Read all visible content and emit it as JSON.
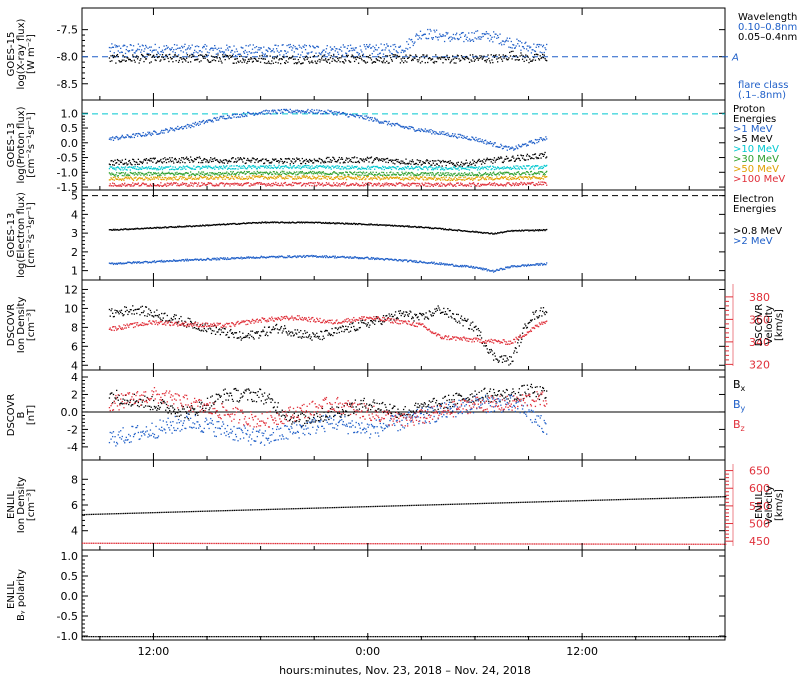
{
  "x_ticks": [
    "12:00",
    "0:00",
    "12:00"
  ],
  "x_axis_label": "hours:minutes, Nov. 23, 2018 – Nov. 24, 2018",
  "chart_data": [
    {
      "type": "scatter",
      "ylabel_lines": [
        "GOES-15",
        "log(X-ray flux)",
        "[W m⁻²]"
      ],
      "ylim": [
        -8.8,
        -7.1
      ],
      "yticks": [
        -8.5,
        -8.0,
        -7.5
      ],
      "hlines": [
        {
          "y": -8.0,
          "color": "#1f5fc8",
          "dash": true,
          "label": "A"
        }
      ],
      "legend_title": "Wavelength",
      "series": [
        {
          "name": "0.10–0.8nm",
          "color": "#1f5fc8",
          "x": [
            -14.5,
            -12,
            -8,
            -4,
            -1,
            1,
            2,
            3,
            4,
            5,
            6,
            7,
            8.5,
            9,
            10
          ],
          "y": [
            -7.85,
            -7.85,
            -7.87,
            -7.86,
            -7.87,
            -7.85,
            -7.82,
            -7.55,
            -7.6,
            -7.65,
            -7.6,
            -7.62,
            -7.78,
            -7.82,
            -7.84
          ],
          "scatter": 0.1
        },
        {
          "name": "0.05–0.4nm",
          "color": "#000000",
          "x": [
            -14.5,
            -10,
            -5,
            0,
            4,
            7.5,
            8,
            9,
            10
          ],
          "y": [
            -8.03,
            -8.02,
            -8.04,
            -8.03,
            -8.03,
            -8.02,
            -7.95,
            -8.03,
            -8.0
          ],
          "scatter": 0.08
        }
      ],
      "extra_text": [
        {
          "text": "flare class",
          "color": "#1f5fc8"
        },
        {
          "text": "(.1–.8nm)",
          "color": "#1f5fc8"
        }
      ]
    },
    {
      "type": "scatter",
      "ylabel_lines": [
        "GOES-13",
        "log(Proton flux)",
        "[cm⁻²s⁻¹sr⁻¹]"
      ],
      "ylim": [
        -1.6,
        1.45
      ],
      "yticks": [
        -1.5,
        -1.0,
        -0.5,
        0.0,
        0.5,
        1.0
      ],
      "hlines": [
        {
          "y": 0.98,
          "color": "#00c8d0",
          "dash": true
        }
      ],
      "legend_title": "Proton Energies",
      "series": [
        {
          "name": ">1 MeV",
          "color": "#1f5fc8",
          "x": [
            -14.5,
            -12,
            -10,
            -8,
            -6,
            -4,
            -2,
            0,
            2,
            4,
            6,
            8,
            10
          ],
          "y": [
            0.15,
            0.35,
            0.6,
            0.9,
            1.05,
            1.1,
            1.05,
            0.85,
            0.55,
            0.35,
            0.15,
            -0.2,
            0.2
          ],
          "scatter": 0.07
        },
        {
          "name": ">5 MeV",
          "color": "#000000",
          "x": [
            -14.5,
            -10,
            -5,
            0,
            5,
            10
          ],
          "y": [
            -0.65,
            -0.55,
            -0.6,
            -0.55,
            -0.7,
            -0.4
          ],
          "scatter": 0.1
        },
        {
          "name": ">10 MeV",
          "color": "#00c8d0",
          "x": [
            -14.5,
            -5,
            5,
            10
          ],
          "y": [
            -0.85,
            -0.8,
            -0.85,
            -0.8
          ],
          "scatter": 0.06
        },
        {
          "name": ">30 MeV",
          "color": "#2ea02e",
          "x": [
            -14.5,
            -5,
            5,
            10
          ],
          "y": [
            -1.05,
            -1.0,
            -1.05,
            -1.0
          ],
          "scatter": 0.06
        },
        {
          "name": ">50 MeV",
          "color": "#e0a000",
          "x": [
            -14.5,
            -5,
            5,
            10
          ],
          "y": [
            -1.2,
            -1.15,
            -1.2,
            -1.15
          ],
          "scatter": 0.06
        },
        {
          "name": ">100 MeV",
          "color": "#e0303a",
          "x": [
            -14.5,
            -5,
            5,
            10
          ],
          "y": [
            -1.4,
            -1.38,
            -1.4,
            -1.36
          ],
          "scatter": 0.06
        }
      ],
      "extra_text": []
    },
    {
      "type": "scatter",
      "ylabel_lines": [
        "GOES-13",
        "log(Electron flux)",
        "[cm⁻²s⁻¹sr⁻¹]"
      ],
      "ylim": [
        0.5,
        5.3
      ],
      "yticks": [
        1,
        2,
        3,
        4,
        5
      ],
      "hlines": [
        {
          "y": 5.0,
          "color": "#000000",
          "dash": true
        }
      ],
      "legend_title": "Electron Energies",
      "series": [
        {
          "name": ">0.8 MeV",
          "color": "#000000",
          "x": [
            -14.5,
            -10,
            -6,
            -3,
            0,
            3,
            6,
            7,
            8,
            10
          ],
          "y": [
            3.2,
            3.4,
            3.6,
            3.6,
            3.5,
            3.35,
            3.1,
            3.0,
            3.15,
            3.2
          ],
          "scatter": 0.03
        },
        {
          "name": ">2 MeV",
          "color": "#1f5fc8",
          "x": [
            -14.5,
            -10,
            -6,
            -3,
            0,
            3,
            6,
            7,
            8,
            10
          ],
          "y": [
            1.4,
            1.6,
            1.75,
            1.8,
            1.7,
            1.5,
            1.2,
            1.0,
            1.25,
            1.4
          ],
          "scatter": 0.05
        }
      ],
      "extra_text": []
    },
    {
      "type": "scatter",
      "ylabel_lines": [
        "DSCOVR",
        "Ion Density",
        "[cm⁻³]"
      ],
      "ylim": [
        3.5,
        13
      ],
      "yticks": [
        4,
        6,
        8,
        10,
        12
      ],
      "y2label_lines": [
        "DSCOVR",
        "Velocity",
        "[km/s]"
      ],
      "y2lim": [
        315,
        395
      ],
      "y2ticks": [
        320,
        340,
        360,
        380
      ],
      "y2color": "#e0303a",
      "series": [
        {
          "name": "Ion Density",
          "color": "#000000",
          "x": [
            -14.5,
            -13,
            -11,
            -9,
            -7,
            -5,
            -3,
            -1,
            1,
            2,
            3,
            4,
            5,
            6,
            7,
            8,
            9,
            10
          ],
          "y": [
            9.5,
            10,
            9,
            8,
            7,
            8,
            7,
            8,
            9,
            9.5,
            9,
            10,
            9,
            8,
            5,
            4.5,
            9,
            10
          ],
          "scatter": 0.5
        },
        {
          "name": "Velocity",
          "axis": "y2",
          "color": "#e0303a",
          "x": [
            -14.5,
            -12,
            -10,
            -8,
            -6,
            -4,
            -2,
            0,
            2,
            3,
            4,
            6,
            8,
            9,
            10
          ],
          "y": [
            352,
            358,
            356,
            355,
            360,
            362,
            358,
            362,
            358,
            355,
            345,
            342,
            340,
            350,
            360
          ],
          "scatter": 2
        }
      ],
      "extra_text": []
    },
    {
      "type": "scatter",
      "ylabel_lines": [
        "DSCOVR",
        "B",
        "[nT]"
      ],
      "ylim": [
        -5.5,
        4.8
      ],
      "yticks": [
        -4,
        -2,
        0,
        2,
        4
      ],
      "hlines": [
        {
          "y": 0,
          "color": "#000000",
          "dash": false
        }
      ],
      "series": [
        {
          "name": "Bx",
          "color": "#000000",
          "x": [
            -14.5,
            -12,
            -10,
            -8,
            -6,
            -4,
            -2,
            0,
            2,
            4,
            6,
            8,
            9,
            10
          ],
          "y": [
            2,
            1,
            0,
            2,
            2,
            -1,
            0,
            1,
            0,
            1,
            2,
            2,
            2.5,
            2
          ],
          "scatter": 0.8
        },
        {
          "name": "By",
          "color": "#1f5fc8",
          "x": [
            -14.5,
            -12,
            -10,
            -8,
            -6,
            -4,
            -2,
            0,
            2,
            4,
            6,
            8,
            9,
            10
          ],
          "y": [
            -3,
            -2,
            -1,
            -2,
            -3,
            -2,
            -1,
            -2,
            -1,
            0,
            1,
            1,
            0,
            -2
          ],
          "scatter": 1.0
        },
        {
          "name": "Bz",
          "color": "#e0303a",
          "x": [
            -14.5,
            -12,
            -10,
            -8,
            -6,
            -4,
            -2,
            0,
            2,
            4,
            6,
            8,
            9,
            10
          ],
          "y": [
            1,
            2,
            1,
            0,
            -1,
            0,
            1,
            0,
            -1,
            0,
            1,
            1,
            1.5,
            1.5
          ],
          "scatter": 0.9
        }
      ],
      "legend_entries": [
        {
          "base": "B",
          "sub": "x",
          "color": "#000000"
        },
        {
          "base": "B",
          "sub": "y",
          "color": "#1f5fc8"
        },
        {
          "base": "B",
          "sub": "z",
          "color": "#e0303a"
        }
      ],
      "extra_text": []
    },
    {
      "type": "scatter",
      "ylabel_lines": [
        "ENLIL",
        "Ion Density",
        "[cm⁻³]"
      ],
      "ylim": [
        2.5,
        9.5
      ],
      "yticks": [
        4,
        6,
        8
      ],
      "y2label_lines": [
        "ENLIL",
        "Velocity",
        "[km/s]"
      ],
      "y2lim": [
        425,
        680
      ],
      "y2ticks": [
        450,
        500,
        550,
        600,
        650
      ],
      "y2color": "#e0303a",
      "series": [
        {
          "name": "Ion Density",
          "color": "#000000",
          "x": [
            -16,
            20
          ],
          "y": [
            5.3,
            6.7
          ],
          "scatter": 0
        },
        {
          "name": "Velocity",
          "axis": "y2",
          "color": "#e0303a",
          "x": [
            -16,
            20
          ],
          "y": [
            446,
            443
          ],
          "scatter": 0
        }
      ],
      "extra_text": []
    },
    {
      "type": "scatter",
      "ylabel_lines": [
        "ENLIL",
        "Bᵧ polarity"
      ],
      "ylim": [
        -1.1,
        1.15
      ],
      "yticks": [
        -1.0,
        -0.5,
        0.0,
        0.5,
        1.0
      ],
      "series": [
        {
          "name": "polarity",
          "color": "#000000",
          "x": [
            -16,
            20
          ],
          "y": [
            -1.0,
            -1.0
          ],
          "scatter": 0
        }
      ],
      "extra_text": []
    }
  ]
}
